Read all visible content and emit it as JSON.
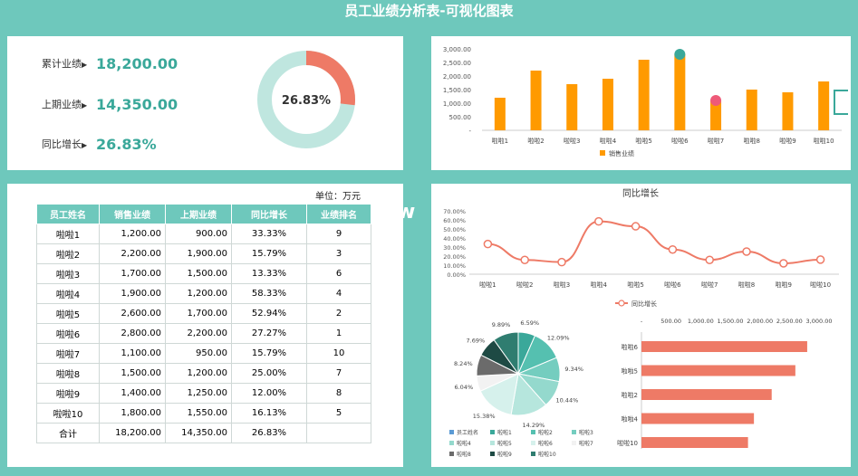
{
  "title": "员工业绩分析表-可视化图表",
  "kpi": [
    {
      "label": "累计业绩",
      "value": "18,200.00"
    },
    {
      "label": "上期业绩",
      "value": "14,350.00"
    },
    {
      "label": "同比增长",
      "value": "26.83%"
    }
  ],
  "donut": {
    "label": "26.83%",
    "percent": 26.83,
    "color_fill": "#ee7a66",
    "color_track": "#bfe6df"
  },
  "colors": {
    "accent": "#6ec8bc",
    "orange": "#ff9a00",
    "salmon": "#ee7a66",
    "teal": "#3aa89a"
  },
  "table": {
    "unit": "单位：万元",
    "headers": [
      "员工姓名",
      "销售业绩",
      "上期业绩",
      "同比增长",
      "业绩排名"
    ],
    "rows": [
      [
        "啦啦1",
        "1,200.00",
        "900.00",
        "33.33%",
        "9"
      ],
      [
        "啦啦2",
        "2,200.00",
        "1,900.00",
        "15.79%",
        "3"
      ],
      [
        "啦啦3",
        "1,700.00",
        "1,500.00",
        "13.33%",
        "6"
      ],
      [
        "啦啦4",
        "1,900.00",
        "1,200.00",
        "58.33%",
        "4"
      ],
      [
        "啦啦5",
        "2,600.00",
        "1,700.00",
        "52.94%",
        "2"
      ],
      [
        "啦啦6",
        "2,800.00",
        "2,200.00",
        "27.27%",
        "1"
      ],
      [
        "啦啦7",
        "1,100.00",
        "950.00",
        "15.79%",
        "10"
      ],
      [
        "啦啦8",
        "1,500.00",
        "1,200.00",
        "25.00%",
        "7"
      ],
      [
        "啦啦9",
        "1,400.00",
        "1,250.00",
        "12.00%",
        "8"
      ],
      [
        "啦啦10",
        "1,800.00",
        "1,550.00",
        "16.13%",
        "5"
      ],
      [
        "合计",
        "18,200.00",
        "14,350.00",
        "26.83%",
        ""
      ]
    ]
  },
  "watermark": "w w .",
  "chart_data": [
    {
      "type": "bar",
      "categories": [
        "啦啦1",
        "啦啦2",
        "啦啦3",
        "啦啦4",
        "啦啦5",
        "啦啦6",
        "啦啦7",
        "啦啦8",
        "啦啦9",
        "啦啦10"
      ],
      "series": [
        {
          "name": "销售业绩",
          "values": [
            1200,
            2200,
            1700,
            1900,
            2600,
            2800,
            1100,
            1500,
            1400,
            1800
          ]
        }
      ],
      "ylim": [
        0,
        3000
      ],
      "yticks": [
        "-",
        "500.00",
        "1,000.00",
        "1,500.00",
        "2,000.00",
        "2,500.00",
        "3,000.00"
      ],
      "color": "#ff9a00",
      "legend": "bottom",
      "markers": [
        {
          "category": "啦啦6",
          "color": "#3aa89a"
        },
        {
          "category": "啦啦7",
          "color": "#ee5a78"
        }
      ]
    },
    {
      "type": "line",
      "title": "同比增长",
      "categories": [
        "啦啦1",
        "啦啦2",
        "啦啦3",
        "啦啦4",
        "啦啦5",
        "啦啦6",
        "啦啦7",
        "啦啦8",
        "啦啦9",
        "啦啦10"
      ],
      "series": [
        {
          "name": "同比增长",
          "values": [
            33.33,
            15.79,
            13.33,
            58.33,
            52.94,
            27.27,
            15.79,
            25.0,
            12.0,
            16.13
          ]
        }
      ],
      "ylim": [
        0,
        70
      ],
      "yticks": [
        "0.00%",
        "10.00%",
        "20.00%",
        "30.00%",
        "40.00%",
        "50.00%",
        "60.00%",
        "70.00%"
      ],
      "color": "#ee7a66",
      "legend": "bottom"
    },
    {
      "type": "pie",
      "categories": [
        "啦啦1",
        "啦啦2",
        "啦啦3",
        "啦啦4",
        "啦啦5",
        "啦啦6",
        "啦啦7",
        "啦啦8",
        "啦啦9",
        "啦啦10"
      ],
      "values": [
        6.59,
        12.09,
        9.34,
        10.44,
        14.29,
        15.38,
        6.04,
        8.24,
        7.69,
        9.89
      ],
      "labels": [
        "6.59%",
        "12.09%",
        "9.34%",
        "10.44%",
        "14.29%",
        "15.38%",
        "6.04%",
        "8.24%",
        "7.69%",
        "9.89%"
      ],
      "colors": [
        "#3aa89a",
        "#55c0b0",
        "#74cdbf",
        "#94d9cd",
        "#b6e6dd",
        "#d6f1ec",
        "#f2f2f2",
        "#6b6b6b",
        "#1e4a44",
        "#2f7d70"
      ],
      "legend_title": "员工姓名",
      "legend": "bottom"
    },
    {
      "type": "bar",
      "orientation": "horizontal",
      "categories": [
        "啦啦6",
        "啦啦5",
        "啦啦2",
        "啦啦4",
        "啦啦10"
      ],
      "values": [
        2800,
        2600,
        2200,
        1900,
        1800
      ],
      "xlim": [
        0,
        3000
      ],
      "xticks": [
        "-",
        "500.00",
        "1,000.00",
        "1,500.00",
        "2,000.00",
        "2,500.00",
        "3,000.00"
      ],
      "color": "#ee7a66"
    }
  ]
}
